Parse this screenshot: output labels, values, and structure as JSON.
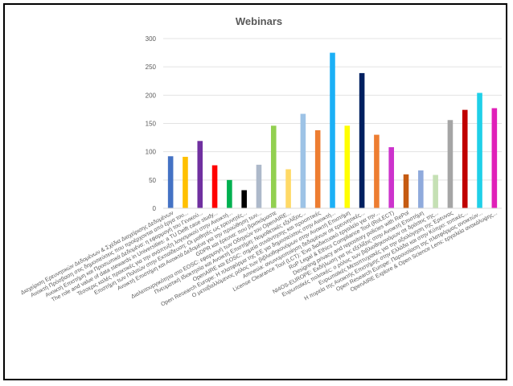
{
  "chart_data": {
    "type": "bar",
    "title": "Webinars",
    "xlabel": "",
    "ylabel": "",
    "ylim": [
      0,
      300
    ],
    "yticks": [
      0,
      50,
      100,
      150,
      200,
      250,
      300
    ],
    "grid": true,
    "legend": "none",
    "categories": [
      "Διαχείριση Ερευνητικών Δεδομένων & Σχέδια Διαχείρισης Δεδομένων",
      "Ανοικτή Πρόσβαση στις δημοσιεύσεις που προέρχονται από έργα του...",
      "Ανοικτή Επιστήμη και Προσωπικά Δεδομένα: η εφαρμογή του Γενικού...",
      "The role and value of data stewards in Universities: a TU Delft case study...",
      "Τέσσερις καλές πρακτικές για την ανάπτυξη λογισμικού στην Ανοικτή...",
      "Επιστήμη των Πολιτών στην Εκπαίδευση: Οι μαθητές ως ερευνητές...",
      "Ανοικτή Επιστήμη και Ανοικτά Δεδομένα για την προώθηση των...",
      "GDPR και έρευνα: που βρισκόμαστε",
      "Διαλειτουργικότητα στο EOSC: εφαρμογή των Οδηγιών του OpenAIRE...",
      "Πνευματική Ιδιοκτησία και Ανοικτή Επιστήμη: Νομοθετικές εξελίξεις...",
      "OpenAIRE και EOSC: σημεία συνάντησης και προοπτικές",
      "Open Research Europe: Η πλατφόρμα της ΕΕ για δημοσιεύσεις στην Ανοικτή...",
      "Ο μεταβαλλόμενος ρόλος των βιβλιοθηκονόμων στην Ανοικτή Επιστήμη",
      "Amnesia: ανωνυμοποίηση δεδομένων σε ερευνητικές...",
      "License Clearance Tool (LCT): Ένα διαδικτυακό εργαλείο για την...",
      "RoP Legal & Ethics Compliance Tool (RoLECT)",
      "Designing privacy and repository policies with RePol",
      "NI4OS-EUROPE: Εκδήλωση για τις εξελίξεις στην Ανοικτή Επιστήμη",
      "Ευρωπαϊκές πολιτικές: ο ρόλος των βιβλιοθηκονόμων σε δράσεις της...",
      "Ευρωπαϊκές Μεταπτυχιακές για την αξιολόγηση της Έρευνας",
      "Η πορεία της Ανοικτής Επιστήμης στην Ελλάδα και στην Κύπρο: τοπικές...",
      "Open Research Europe: Παρουσίαση της πλατφόρμας ανοικτών...",
      "OpenAIRE Explore & Open Science Lens: εργαλεία ανακάλυψης..."
    ],
    "values": [
      92,
      91,
      119,
      76,
      50,
      32,
      77,
      146,
      69,
      167,
      138,
      275,
      146,
      239,
      130,
      108,
      60,
      67,
      59,
      156,
      174,
      204,
      177
    ],
    "colors": [
      "#4472c4",
      "#ffc000",
      "#7030a0",
      "#ff0000",
      "#00b050",
      "#000000",
      "#adb9ca",
      "#92d050",
      "#ffd966",
      "#9dc3e6",
      "#ed7d31",
      "#1cb0f6",
      "#ffff00",
      "#002060",
      "#ed7d31",
      "#cc33cc",
      "#c55a11",
      "#8faadc",
      "#c5e0b4",
      "#a5a5a5",
      "#c00000",
      "#1fd0e8",
      "#e020b8"
    ]
  }
}
